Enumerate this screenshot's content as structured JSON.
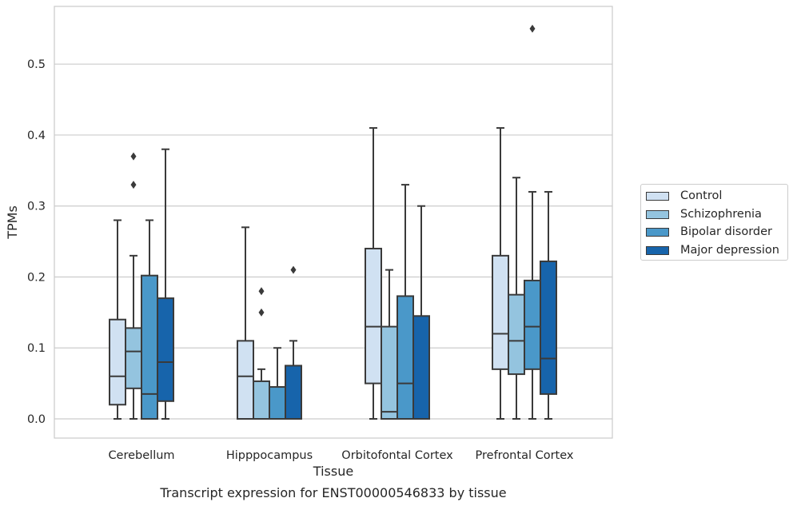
{
  "chart_data": {
    "type": "box",
    "title": "",
    "caption": "Transcript expression for ENST00000546833 by tissue",
    "xlabel": "Tissue",
    "ylabel": "TPMs",
    "ylim": [
      -0.027,
      0.582
    ],
    "yticks": [
      "0.0",
      "0.1",
      "0.2",
      "0.3",
      "0.4",
      "0.5"
    ],
    "categories": [
      "Cerebellum",
      "Hipppocampus",
      "Orbitofontal Cortex",
      "Prefrontal Cortex"
    ],
    "grid": "horizontal",
    "legend_position": "right",
    "series": [
      {
        "name": "Control",
        "color": "#d0e1f2",
        "boxes": [
          {
            "whislo": 0.0,
            "q1": 0.02,
            "med": 0.06,
            "q3": 0.14,
            "whishi": 0.28,
            "fliers": []
          },
          {
            "whislo": 0.0,
            "q1": 0.0,
            "med": 0.06,
            "q3": 0.11,
            "whishi": 0.27,
            "fliers": []
          },
          {
            "whislo": 0.0,
            "q1": 0.05,
            "med": 0.13,
            "q3": 0.24,
            "whishi": 0.41,
            "fliers": []
          },
          {
            "whislo": 0.0,
            "q1": 0.07,
            "med": 0.12,
            "q3": 0.23,
            "whishi": 0.41,
            "fliers": []
          }
        ]
      },
      {
        "name": "Schizophrenia",
        "color": "#94c4df",
        "boxes": [
          {
            "whislo": 0.0,
            "q1": 0.043,
            "med": 0.095,
            "q3": 0.128,
            "whishi": 0.23,
            "fliers": [
              0.33,
              0.37
            ]
          },
          {
            "whislo": 0.0,
            "q1": 0.0,
            "med": 0.0,
            "q3": 0.053,
            "whishi": 0.07,
            "fliers": [
              0.15,
              0.18
            ]
          },
          {
            "whislo": 0.0,
            "q1": 0.0,
            "med": 0.01,
            "q3": 0.13,
            "whishi": 0.21,
            "fliers": []
          },
          {
            "whislo": 0.0,
            "q1": 0.063,
            "med": 0.11,
            "q3": 0.175,
            "whishi": 0.34,
            "fliers": []
          }
        ]
      },
      {
        "name": "Bipolar disorder",
        "color": "#4a98c9",
        "boxes": [
          {
            "whislo": 0.0,
            "q1": 0.0,
            "med": 0.035,
            "q3": 0.202,
            "whishi": 0.28,
            "fliers": []
          },
          {
            "whislo": 0.0,
            "q1": 0.0,
            "med": 0.0,
            "q3": 0.045,
            "whishi": 0.1,
            "fliers": []
          },
          {
            "whislo": 0.0,
            "q1": 0.0,
            "med": 0.05,
            "q3": 0.173,
            "whishi": 0.33,
            "fliers": []
          },
          {
            "whislo": 0.0,
            "q1": 0.07,
            "med": 0.13,
            "q3": 0.195,
            "whishi": 0.32,
            "fliers": [
              0.55
            ]
          }
        ]
      },
      {
        "name": "Major depression",
        "color": "#1764ab",
        "boxes": [
          {
            "whislo": 0.0,
            "q1": 0.025,
            "med": 0.08,
            "q3": 0.17,
            "whishi": 0.38,
            "fliers": []
          },
          {
            "whislo": 0.0,
            "q1": 0.0,
            "med": 0.0,
            "q3": 0.075,
            "whishi": 0.11,
            "fliers": [
              0.21
            ]
          },
          {
            "whislo": 0.0,
            "q1": 0.0,
            "med": 0.0,
            "q3": 0.145,
            "whishi": 0.3,
            "fliers": []
          },
          {
            "whislo": 0.0,
            "q1": 0.035,
            "med": 0.085,
            "q3": 0.222,
            "whishi": 0.32,
            "fliers": []
          }
        ]
      }
    ]
  }
}
